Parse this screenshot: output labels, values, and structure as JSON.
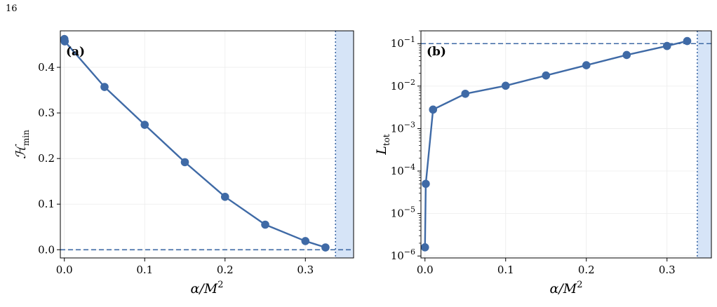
{
  "page": {
    "number": "16"
  },
  "chart_data": [
    {
      "type": "line",
      "panel_label": "(a)",
      "xlabel": "α/M²",
      "ylabel": "ℋmin",
      "ylabel_main": "ℋ",
      "ylabel_sub": "min",
      "x_scale": "linear",
      "y_scale": "linear",
      "xlim": [
        -0.005,
        0.36
      ],
      "ylim": [
        -0.018,
        0.48
      ],
      "xticks": [
        0.0,
        0.1,
        0.2,
        0.3
      ],
      "xtick_labels": [
        "0.0",
        "0.1",
        "0.2",
        "0.3"
      ],
      "yticks": [
        0.0,
        0.1,
        0.2,
        0.3,
        0.4
      ],
      "ytick_labels": [
        "0.0",
        "0.1",
        "0.2",
        "0.3",
        "0.4"
      ],
      "grid": true,
      "series": [
        {
          "color": "#3f6aa6",
          "x": [
            0.0,
            0.0005,
            0.05,
            0.1,
            0.15,
            0.2,
            0.25,
            0.3,
            0.325
          ],
          "y": [
            0.462,
            0.457,
            0.357,
            0.274,
            0.192,
            0.116,
            0.055,
            0.019,
            0.005
          ]
        }
      ],
      "hline": {
        "y": 0.0,
        "style": "dashed",
        "color": "#3f6aa6"
      },
      "vline": {
        "x": 0.3375,
        "style": "dotted",
        "color": "#3f6aa6"
      },
      "shaded_region": {
        "x": [
          0.3375,
          0.36
        ],
        "color": "#d6e4f7"
      }
    },
    {
      "type": "line",
      "panel_label": "(b)",
      "xlabel": "α/M²",
      "ylabel": "Ltot",
      "ylabel_main": "L",
      "ylabel_sub": "tot",
      "x_scale": "linear",
      "y_scale": "log",
      "xlim": [
        -0.005,
        0.355
      ],
      "ylim": [
        9e-07,
        0.2
      ],
      "xticks": [
        0.0,
        0.1,
        0.2,
        0.3
      ],
      "xtick_labels": [
        "0.0",
        "0.1",
        "0.2",
        "0.3"
      ],
      "yticks": [
        1e-06,
        1e-05,
        0.0001,
        0.001,
        0.01,
        0.1
      ],
      "ytick_labels": [
        {
          "base": "10",
          "exp": "−6"
        },
        {
          "base": "10",
          "exp": "−5"
        },
        {
          "base": "10",
          "exp": "−4"
        },
        {
          "base": "10",
          "exp": "−3"
        },
        {
          "base": "10",
          "exp": "−2"
        },
        {
          "base": "10",
          "exp": "−1"
        }
      ],
      "grid": true,
      "series": [
        {
          "color": "#3f6aa6",
          "x": [
            0.0,
            0.001,
            0.01,
            0.05,
            0.1,
            0.15,
            0.2,
            0.25,
            0.3,
            0.325
          ],
          "y": [
            1.6e-06,
            5e-05,
            0.0028,
            0.0066,
            0.0102,
            0.0178,
            0.031,
            0.054,
            0.088,
            0.115
          ]
        }
      ],
      "hline": {
        "y": 0.1,
        "style": "dashed",
        "color": "#3f6aa6"
      },
      "vline": {
        "x": 0.3375,
        "style": "dotted",
        "color": "#3f6aa6"
      },
      "shaded_region": {
        "x": [
          0.3375,
          0.355
        ],
        "color": "#d6e4f7"
      }
    }
  ]
}
